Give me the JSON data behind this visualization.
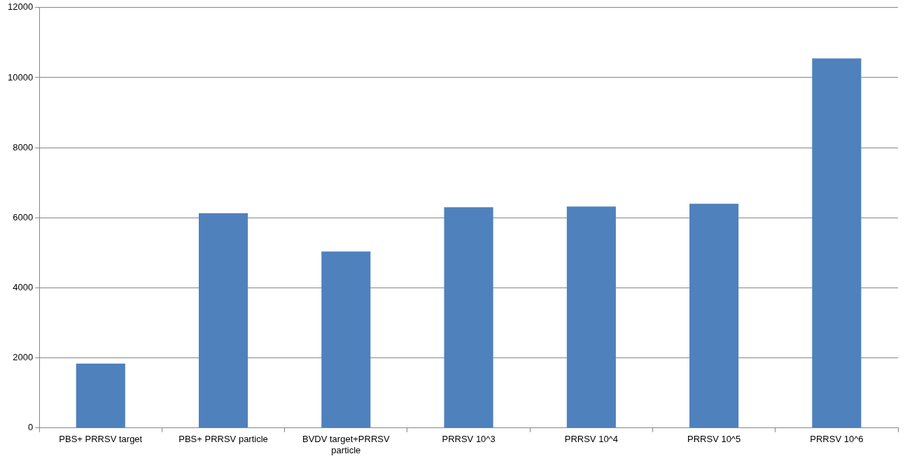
{
  "chart_data": {
    "type": "bar",
    "categories": [
      "PBS+ PRRSV target",
      "PBS+ PRRSV particle",
      "BVDV target+PRRSV particle",
      "PRRSV 10^3",
      "PRRSV 10^4",
      "PRRSV 10^5",
      "PRRSV 10^6"
    ],
    "values": [
      1840,
      6130,
      5040,
      6300,
      6320,
      6400,
      10550
    ],
    "color": "#4f81bd",
    "ylim": [
      0,
      12000
    ],
    "yticks": [
      0,
      2000,
      4000,
      6000,
      8000,
      10000,
      12000
    ],
    "grid": "y",
    "legend": false
  }
}
